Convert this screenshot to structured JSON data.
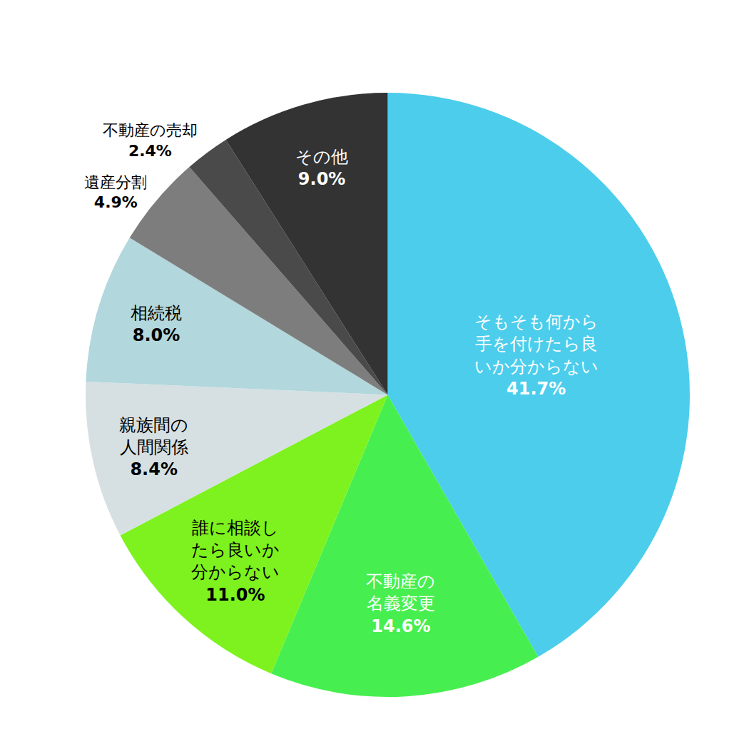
{
  "chart_data": {
    "type": "pie",
    "categories": [
      "そもそも何から手を付けたら良いか分からない",
      "不動産の名義変更",
      "誰に相談したら良いか分からない",
      "親族間の人間関係",
      "相続税",
      "遺産分割",
      "不動産の売却",
      "その他"
    ],
    "values": [
      41.7,
      14.6,
      11.0,
      8.4,
      8.0,
      4.9,
      2.4,
      9.0
    ],
    "value_labels": [
      "41.7%",
      "14.6%",
      "11.0%",
      "8.4%",
      "8.0%",
      "4.9%",
      "2.4%",
      "9.0%"
    ],
    "colors": [
      "#4ccdec",
      "#46ef4f",
      "#7ef21e",
      "#d6e0e2",
      "#b2d7dc",
      "#7d7d7d",
      "#4a4a4a",
      "#333333"
    ],
    "data_labels": true
  }
}
